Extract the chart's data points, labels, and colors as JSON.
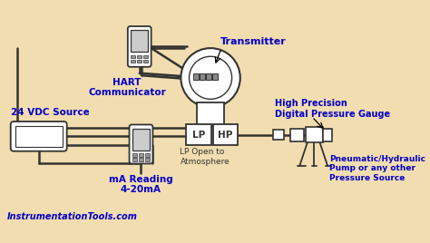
{
  "bg_color": "#f2ddb0",
  "line_color": "#333333",
  "label_color": "#0000cc",
  "arrow_color": "#000000",
  "labels": {
    "transmitter": "Transmitter",
    "hart": "HART\nCommunicator",
    "vdc": "24 VDC Source",
    "ma": "mA Reading\n4-20mA",
    "lp_open": "LP Open to\nAtmosphere",
    "hp_gauge": "High Precision\nDigital Pressure Gauge",
    "pump": "Pneumatic/Hydraulic\nPump or any other\nPressure Source",
    "lp": "LP",
    "hp": "HP",
    "website": "InstrumentationTools.com"
  },
  "figsize": [
    4.74,
    2.68
  ],
  "dpi": 100
}
